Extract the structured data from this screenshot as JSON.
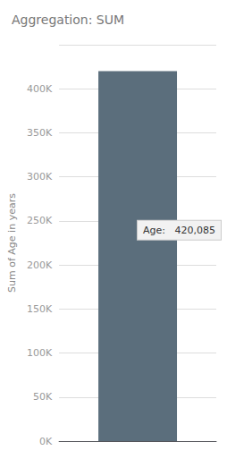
{
  "chart_data": {
    "type": "bar",
    "title": "Aggregation: SUM",
    "categories": [
      null
    ],
    "values": [
      420085
    ],
    "color": "#5b6e7c",
    "ylabel": "Sum of Age in years",
    "ylim": [
      0,
      450000
    ],
    "yticks": [
      {
        "value": 0,
        "label": "0K"
      },
      {
        "value": 50000,
        "label": "50K"
      },
      {
        "value": 100000,
        "label": "100K"
      },
      {
        "value": 150000,
        "label": "150K"
      },
      {
        "value": 200000,
        "label": "200K"
      },
      {
        "value": 250000,
        "label": "250K"
      },
      {
        "value": 300000,
        "label": "300K"
      },
      {
        "value": 350000,
        "label": "350K"
      },
      {
        "value": 400000,
        "label": "400K"
      },
      {
        "value": 450000,
        "label": ""
      }
    ],
    "grid": true,
    "tick_labels": "y",
    "annotations": [
      {
        "text": "Age:   420,085",
        "y": 240000
      }
    ]
  }
}
